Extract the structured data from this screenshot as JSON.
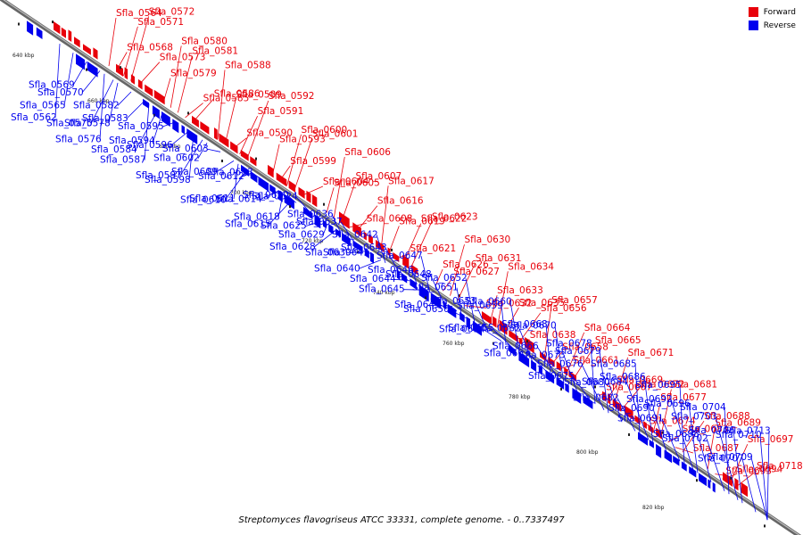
{
  "legend": {
    "forward_label": "Forward",
    "reverse_label": "Reverse",
    "forward_color": "#e8000a",
    "reverse_color": "#0000ee"
  },
  "caption": "Streptomyces flavogriseus ATCC 33331, complete genome. - 0..7337497",
  "ticks": [
    "640 kbp",
    "660 kbp",
    "680 kbp",
    "700 kbp",
    "720 kbp",
    "740 kbp",
    "760 kbp",
    "780 kbp",
    "800 kbp",
    "820 kbp"
  ],
  "forward_genes": [
    "Sfla_0564",
    "Sfla_0568",
    "Sfla_0571",
    "Sfla_0572",
    "Sfla_0573",
    "Sfla_0579",
    "Sfla_0580",
    "Sfla_0581",
    "Sfla_0585",
    "Sfla_0586",
    "Sfla_0588",
    "Sfla_0589",
    "Sfla_0590",
    "Sfla_0591",
    "Sfla_0592",
    "Sfla_0593",
    "Sfla_0599",
    "Sfla_0600",
    "Sfla_0601",
    "Sfla_0604",
    "Sfla_0605",
    "Sfla_0606",
    "Sfla_0607",
    "Sfla_0608",
    "Sfla_0616",
    "Sfla_0617",
    "Sfla_0619",
    "Sfla_0621",
    "Sfla_0622",
    "Sfla_0623",
    "Sfla_0626",
    "Sfla_0627",
    "Sfla_0630",
    "Sfla_0631",
    "Sfla_0632",
    "Sfla_0633",
    "Sfla_0634",
    "Sfla_0635",
    "Sfla_0638",
    "Sfla_0656",
    "Sfla_0657",
    "Sfla_0658",
    "Sfla_0661",
    "Sfla_0664",
    "Sfla_0665",
    "Sfla_0667",
    "Sfla_0669",
    "Sfla_0671",
    "Sfla_0672",
    "Sfla_0674",
    "Sfla_0677",
    "Sfla_0681",
    "Sfla_0683",
    "Sfla_0687",
    "Sfla_0688",
    "Sfla_0689",
    "Sfla_0693",
    "Sfla_0694",
    "Sfla_0697",
    "Sfla_0718"
  ],
  "reverse_genes": [
    "Sfla_0562",
    "Sfla_0565",
    "Sfla_0569",
    "Sfla_0570",
    "Sfla_0575",
    "Sfla_0576",
    "Sfla_0578",
    "Sfla_0582",
    "Sfla_0583",
    "Sfla_0584",
    "Sfla_0587",
    "Sfla_0594",
    "Sfla_0595",
    "Sfla_0596",
    "Sfla_0597",
    "Sfla_0598",
    "Sfla_0602",
    "Sfla_0603",
    "Sfla_0609",
    "Sfla_0610",
    "Sfla_0611",
    "Sfla_0612",
    "Sfla_0613",
    "Sfla_0614",
    "Sfla_0615",
    "Sfla_0618",
    "Sfla_0620",
    "Sfla_0624",
    "Sfla_0625",
    "Sfla_0628",
    "Sfla_0629",
    "Sfla_0636",
    "Sfla_0637",
    "Sfla_0639",
    "Sfla_0640",
    "Sfla_0641",
    "Sfla_0642",
    "Sfla_0643",
    "Sfla_0644",
    "Sfla_0645",
    "Sfla_0646",
    "Sfla_0647",
    "Sfla_0648",
    "Sfla_0649",
    "Sfla_0650",
    "Sfla_0651",
    "Sfla_0652",
    "Sfla_0653",
    "Sfla_0654",
    "Sfla_0655",
    "Sfla_0659",
    "Sfla_0660",
    "Sfla_0662",
    "Sfla_0663",
    "Sfla_0666",
    "Sfla_0668",
    "Sfla_0670",
    "Sfla_0673",
    "Sfla_0675",
    "Sfla_0676",
    "Sfla_0678",
    "Sfla_0679",
    "Sfla_0680",
    "Sfla_0682",
    "Sfla_0684",
    "Sfla_0685",
    "Sfla_0686",
    "Sfla_0690",
    "Sfla_0691",
    "Sfla_0692",
    "Sfla_0695",
    "Sfla_0696",
    "Sfla_0698",
    "Sfla_0702",
    "Sfla_0703",
    "Sfla_0704",
    "Sfla_0706",
    "Sfla_0707",
    "Sfla_0709",
    "Sfla_0710",
    "Sfla_0713"
  ]
}
